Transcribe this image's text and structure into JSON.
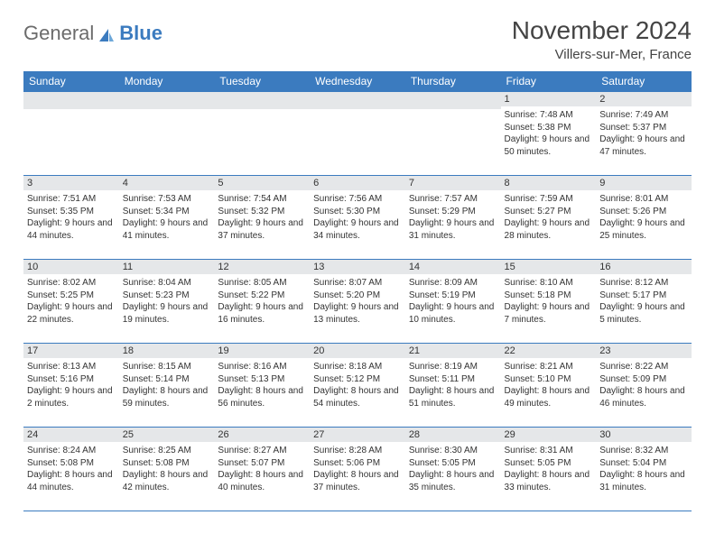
{
  "brand": {
    "general": "General",
    "blue": "Blue"
  },
  "title": "November 2024",
  "location": "Villers-sur-Mer, France",
  "colors": {
    "header_bg": "#3b7bbf",
    "daynum_bg": "#e5e7e9",
    "border": "#3b7bbf",
    "text": "#333333"
  },
  "weekdays": [
    "Sunday",
    "Monday",
    "Tuesday",
    "Wednesday",
    "Thursday",
    "Friday",
    "Saturday"
  ],
  "weeks": [
    [
      {
        "n": "",
        "sr": "",
        "ss": "",
        "dl": ""
      },
      {
        "n": "",
        "sr": "",
        "ss": "",
        "dl": ""
      },
      {
        "n": "",
        "sr": "",
        "ss": "",
        "dl": ""
      },
      {
        "n": "",
        "sr": "",
        "ss": "",
        "dl": ""
      },
      {
        "n": "",
        "sr": "",
        "ss": "",
        "dl": ""
      },
      {
        "n": "1",
        "sr": "Sunrise: 7:48 AM",
        "ss": "Sunset: 5:38 PM",
        "dl": "Daylight: 9 hours and 50 minutes."
      },
      {
        "n": "2",
        "sr": "Sunrise: 7:49 AM",
        "ss": "Sunset: 5:37 PM",
        "dl": "Daylight: 9 hours and 47 minutes."
      }
    ],
    [
      {
        "n": "3",
        "sr": "Sunrise: 7:51 AM",
        "ss": "Sunset: 5:35 PM",
        "dl": "Daylight: 9 hours and 44 minutes."
      },
      {
        "n": "4",
        "sr": "Sunrise: 7:53 AM",
        "ss": "Sunset: 5:34 PM",
        "dl": "Daylight: 9 hours and 41 minutes."
      },
      {
        "n": "5",
        "sr": "Sunrise: 7:54 AM",
        "ss": "Sunset: 5:32 PM",
        "dl": "Daylight: 9 hours and 37 minutes."
      },
      {
        "n": "6",
        "sr": "Sunrise: 7:56 AM",
        "ss": "Sunset: 5:30 PM",
        "dl": "Daylight: 9 hours and 34 minutes."
      },
      {
        "n": "7",
        "sr": "Sunrise: 7:57 AM",
        "ss": "Sunset: 5:29 PM",
        "dl": "Daylight: 9 hours and 31 minutes."
      },
      {
        "n": "8",
        "sr": "Sunrise: 7:59 AM",
        "ss": "Sunset: 5:27 PM",
        "dl": "Daylight: 9 hours and 28 minutes."
      },
      {
        "n": "9",
        "sr": "Sunrise: 8:01 AM",
        "ss": "Sunset: 5:26 PM",
        "dl": "Daylight: 9 hours and 25 minutes."
      }
    ],
    [
      {
        "n": "10",
        "sr": "Sunrise: 8:02 AM",
        "ss": "Sunset: 5:25 PM",
        "dl": "Daylight: 9 hours and 22 minutes."
      },
      {
        "n": "11",
        "sr": "Sunrise: 8:04 AM",
        "ss": "Sunset: 5:23 PM",
        "dl": "Daylight: 9 hours and 19 minutes."
      },
      {
        "n": "12",
        "sr": "Sunrise: 8:05 AM",
        "ss": "Sunset: 5:22 PM",
        "dl": "Daylight: 9 hours and 16 minutes."
      },
      {
        "n": "13",
        "sr": "Sunrise: 8:07 AM",
        "ss": "Sunset: 5:20 PM",
        "dl": "Daylight: 9 hours and 13 minutes."
      },
      {
        "n": "14",
        "sr": "Sunrise: 8:09 AM",
        "ss": "Sunset: 5:19 PM",
        "dl": "Daylight: 9 hours and 10 minutes."
      },
      {
        "n": "15",
        "sr": "Sunrise: 8:10 AM",
        "ss": "Sunset: 5:18 PM",
        "dl": "Daylight: 9 hours and 7 minutes."
      },
      {
        "n": "16",
        "sr": "Sunrise: 8:12 AM",
        "ss": "Sunset: 5:17 PM",
        "dl": "Daylight: 9 hours and 5 minutes."
      }
    ],
    [
      {
        "n": "17",
        "sr": "Sunrise: 8:13 AM",
        "ss": "Sunset: 5:16 PM",
        "dl": "Daylight: 9 hours and 2 minutes."
      },
      {
        "n": "18",
        "sr": "Sunrise: 8:15 AM",
        "ss": "Sunset: 5:14 PM",
        "dl": "Daylight: 8 hours and 59 minutes."
      },
      {
        "n": "19",
        "sr": "Sunrise: 8:16 AM",
        "ss": "Sunset: 5:13 PM",
        "dl": "Daylight: 8 hours and 56 minutes."
      },
      {
        "n": "20",
        "sr": "Sunrise: 8:18 AM",
        "ss": "Sunset: 5:12 PM",
        "dl": "Daylight: 8 hours and 54 minutes."
      },
      {
        "n": "21",
        "sr": "Sunrise: 8:19 AM",
        "ss": "Sunset: 5:11 PM",
        "dl": "Daylight: 8 hours and 51 minutes."
      },
      {
        "n": "22",
        "sr": "Sunrise: 8:21 AM",
        "ss": "Sunset: 5:10 PM",
        "dl": "Daylight: 8 hours and 49 minutes."
      },
      {
        "n": "23",
        "sr": "Sunrise: 8:22 AM",
        "ss": "Sunset: 5:09 PM",
        "dl": "Daylight: 8 hours and 46 minutes."
      }
    ],
    [
      {
        "n": "24",
        "sr": "Sunrise: 8:24 AM",
        "ss": "Sunset: 5:08 PM",
        "dl": "Daylight: 8 hours and 44 minutes."
      },
      {
        "n": "25",
        "sr": "Sunrise: 8:25 AM",
        "ss": "Sunset: 5:08 PM",
        "dl": "Daylight: 8 hours and 42 minutes."
      },
      {
        "n": "26",
        "sr": "Sunrise: 8:27 AM",
        "ss": "Sunset: 5:07 PM",
        "dl": "Daylight: 8 hours and 40 minutes."
      },
      {
        "n": "27",
        "sr": "Sunrise: 8:28 AM",
        "ss": "Sunset: 5:06 PM",
        "dl": "Daylight: 8 hours and 37 minutes."
      },
      {
        "n": "28",
        "sr": "Sunrise: 8:30 AM",
        "ss": "Sunset: 5:05 PM",
        "dl": "Daylight: 8 hours and 35 minutes."
      },
      {
        "n": "29",
        "sr": "Sunrise: 8:31 AM",
        "ss": "Sunset: 5:05 PM",
        "dl": "Daylight: 8 hours and 33 minutes."
      },
      {
        "n": "30",
        "sr": "Sunrise: 8:32 AM",
        "ss": "Sunset: 5:04 PM",
        "dl": "Daylight: 8 hours and 31 minutes."
      }
    ]
  ]
}
